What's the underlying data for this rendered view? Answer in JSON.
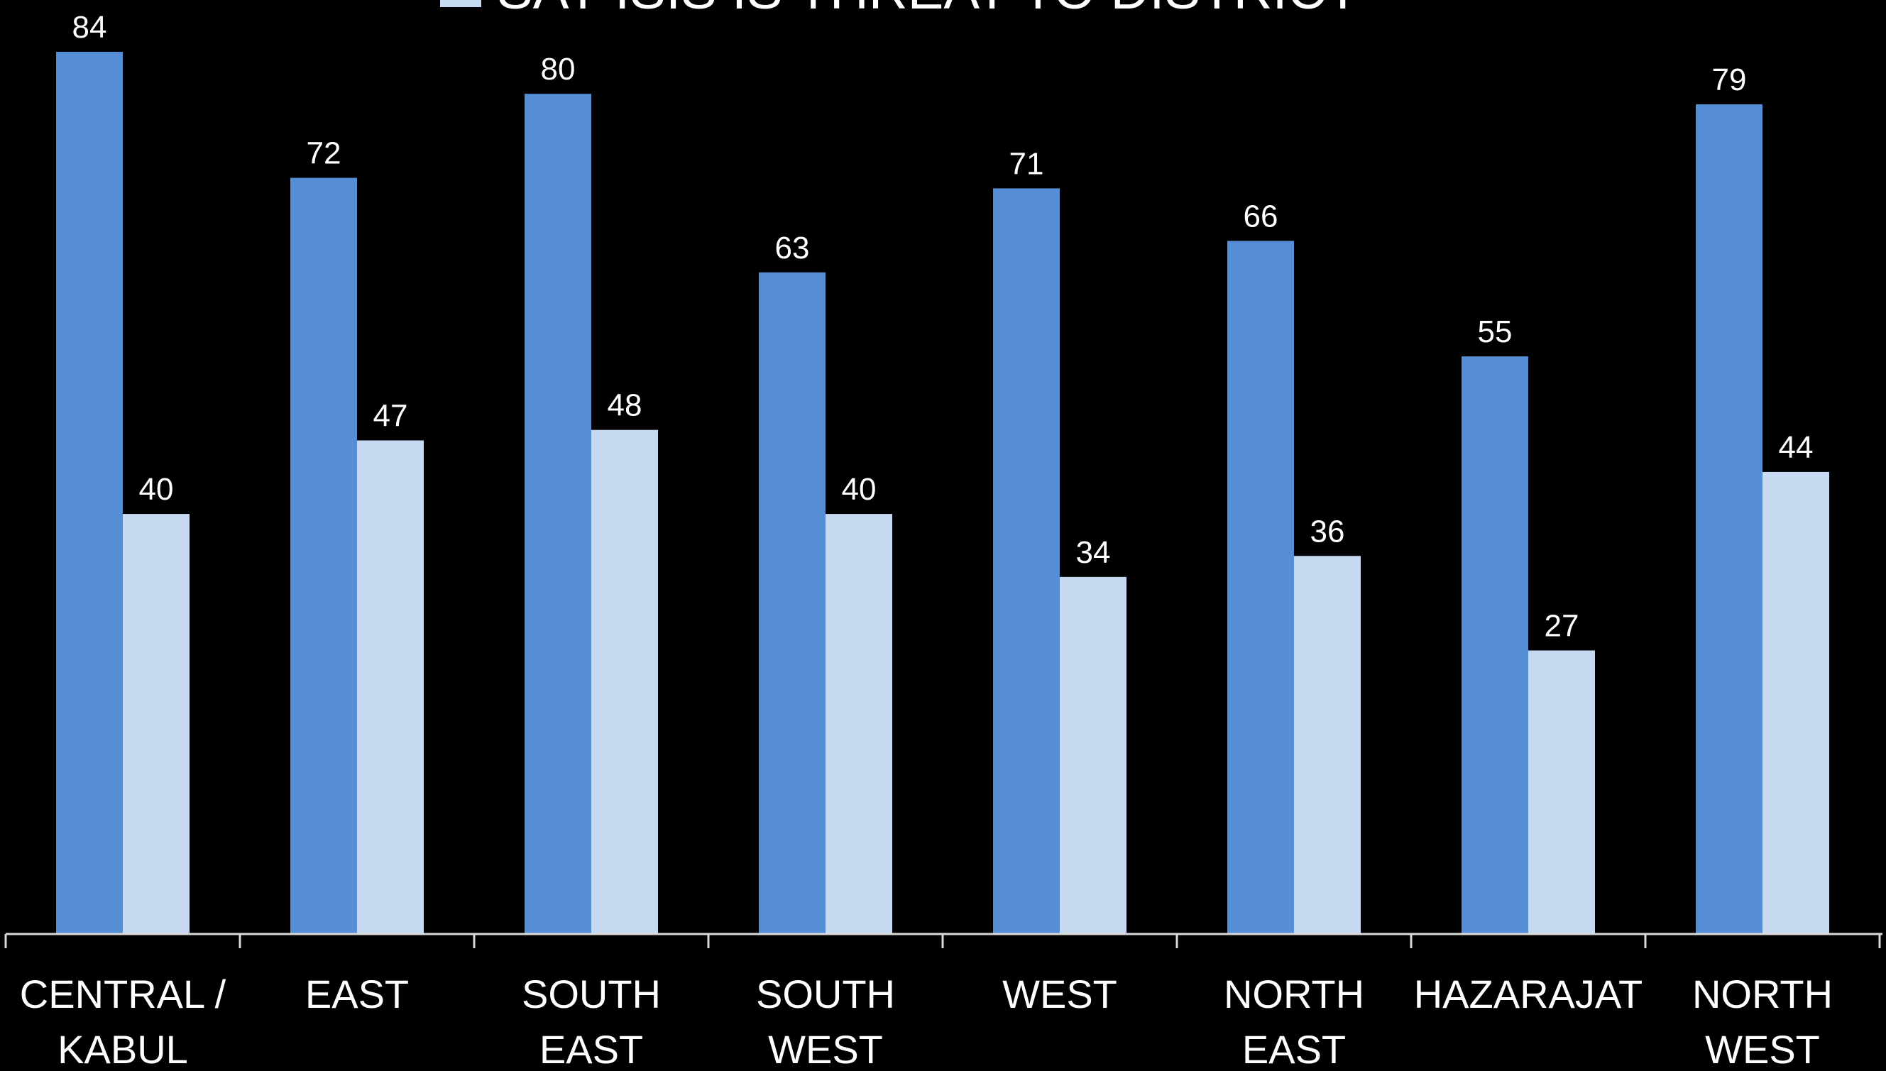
{
  "chart_data": {
    "type": "bar",
    "categories": [
      [
        "CENTRAL /",
        "KABUL"
      ],
      [
        "EAST"
      ],
      [
        "SOUTH",
        "EAST"
      ],
      [
        "SOUTH",
        "WEST"
      ],
      [
        "WEST"
      ],
      [
        "NORTH",
        "EAST"
      ],
      [
        "HAZARAJAT"
      ],
      [
        "NORTH",
        "WEST"
      ]
    ],
    "series": [
      {
        "values": [
          84,
          72,
          80,
          63,
          71,
          66,
          55,
          79
        ],
        "color": "#558ED5"
      },
      {
        "name": "SAY ISIS IS THREAT TO DISTRICT",
        "values": [
          40,
          47,
          48,
          40,
          34,
          36,
          27,
          44
        ],
        "color": "#C6D9F1"
      }
    ],
    "legend": {
      "position": "top",
      "visible_entry": "SAY ISIS IS THREAT TO DISTRICT"
    },
    "ylim": [
      0,
      84
    ],
    "grid": false,
    "data_labels": true,
    "axis_color": "#D9D9D9",
    "background": "#000000"
  }
}
